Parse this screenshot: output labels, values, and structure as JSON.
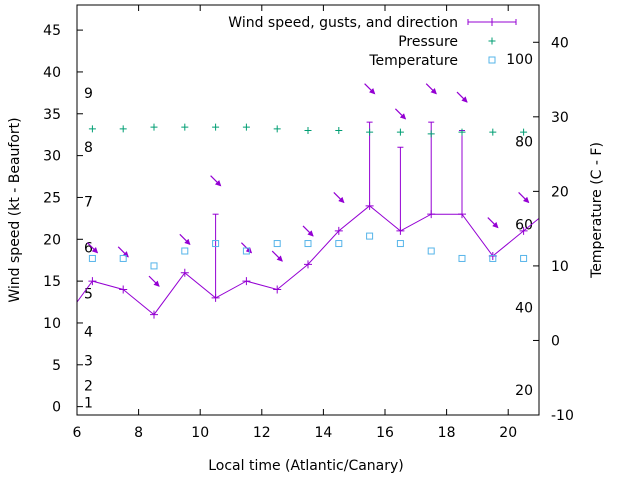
{
  "chart_data": {
    "type": "line",
    "xlabel": "Local time (Atlantic/Canary)",
    "ylabel_left": "Wind speed (kt - Beaufort)",
    "ylabel_right": "Temperature (C - F)",
    "x_range": [
      6,
      21
    ],
    "y_left_range": [
      -1,
      48
    ],
    "y_right_range": [
      -10,
      45
    ],
    "x_ticks": [
      "6",
      "8",
      "10",
      "12",
      "14",
      "16",
      "18",
      "20"
    ],
    "y_left_ticks": [
      "0",
      "5",
      "10",
      "15",
      "20",
      "25",
      "30",
      "35",
      "40",
      "45"
    ],
    "y_right_ticks": [
      "-10",
      "0",
      "10",
      "20",
      "30",
      "40"
    ],
    "beaufort_labels": [
      "1",
      "2",
      "3",
      "4",
      "5",
      "6",
      "7",
      "8",
      "9"
    ],
    "fahrenheit_labels": [
      "20",
      "40",
      "60",
      "80",
      "100"
    ],
    "legend": [
      {
        "label": "Wind speed, gusts, and direction",
        "color": "#9400d3"
      },
      {
        "label": "Pressure",
        "color": "#009e73"
      },
      {
        "label": "Temperature",
        "color": "#56b4e9"
      }
    ],
    "series": [
      {
        "name": "Wind speed, gusts, and direction",
        "x": [
          5.5,
          6.5,
          7.5,
          8.5,
          9.5,
          10.5,
          11.5,
          12.5,
          13.5,
          14.5,
          15.5,
          16.5,
          17.5,
          18.5,
          19.5,
          20.5,
          21.5
        ],
        "speed": [
          10,
          15,
          14,
          11,
          16,
          13,
          15,
          14,
          17,
          21,
          24,
          21,
          23,
          23,
          18,
          21,
          24
        ],
        "gust": [
          null,
          null,
          null,
          null,
          null,
          23,
          null,
          null,
          null,
          null,
          34,
          31,
          34,
          33,
          null,
          null,
          null
        ],
        "arrow_y": [
          null,
          19,
          18.5,
          15,
          20,
          27,
          19,
          18,
          21,
          25,
          38,
          35,
          38,
          37,
          22,
          25,
          null
        ]
      },
      {
        "name": "Pressure",
        "x": [
          6.5,
          7.5,
          8.5,
          9.5,
          10.5,
          11.5,
          12.5,
          13.5,
          14.5,
          15.5,
          16.5,
          17.5,
          18.5,
          19.5,
          20.5
        ],
        "values": [
          33.2,
          33.2,
          33.4,
          33.4,
          33.4,
          33.4,
          33.2,
          33.0,
          33.0,
          32.8,
          32.8,
          32.6,
          32.8,
          32.8,
          32.8
        ]
      },
      {
        "name": "Temperature",
        "x": [
          6.5,
          7.5,
          8.5,
          9.5,
          10.5,
          11.5,
          12.5,
          13.5,
          14.5,
          15.5,
          16.5,
          17.5,
          18.5,
          19.5,
          20.5
        ],
        "values": [
          11,
          11,
          10,
          12,
          13,
          12,
          13,
          13,
          13,
          14,
          13,
          12,
          11,
          11,
          11
        ]
      }
    ]
  }
}
